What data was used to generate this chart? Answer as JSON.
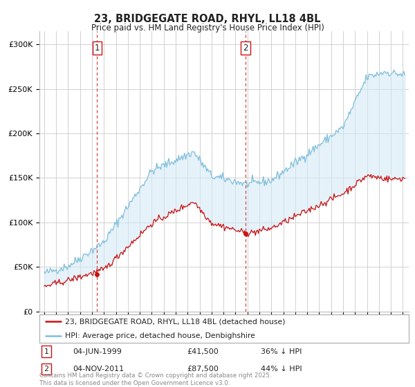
{
  "title": "23, BRIDGEGATE ROAD, RHYL, LL18 4BL",
  "subtitle": "Price paid vs. HM Land Registry's House Price Index (HPI)",
  "legend_line1": "23, BRIDGEGATE ROAD, RHYL, LL18 4BL (detached house)",
  "legend_line2": "HPI: Average price, detached house, Denbighshire",
  "annotation1_label": "1",
  "annotation1_date": "04-JUN-1999",
  "annotation1_price": "£41,500",
  "annotation1_hpi": "36% ↓ HPI",
  "annotation2_label": "2",
  "annotation2_date": "04-NOV-2011",
  "annotation2_price": "£87,500",
  "annotation2_hpi": "44% ↓ HPI",
  "sale1_year": 1999.42,
  "sale1_price": 41500,
  "sale2_year": 2011.84,
  "sale2_price": 87500,
  "hpi_color": "#7fbfdd",
  "hpi_fill_color": "#d6eaf5",
  "sale_color": "#cc1111",
  "vline_color": "#cc1111",
  "ylabel_ticks": [
    "£0",
    "£50K",
    "£100K",
    "£150K",
    "£200K",
    "£250K",
    "£300K"
  ],
  "ylabel_values": [
    0,
    50000,
    100000,
    150000,
    200000,
    250000,
    300000
  ],
  "ylim": [
    0,
    315000
  ],
  "xlim_start": 1994.6,
  "xlim_end": 2025.5,
  "footer": "Contains HM Land Registry data © Crown copyright and database right 2025.\nThis data is licensed under the Open Government Licence v3.0.",
  "background_color": "#ffffff",
  "grid_color": "#d0d0d0"
}
